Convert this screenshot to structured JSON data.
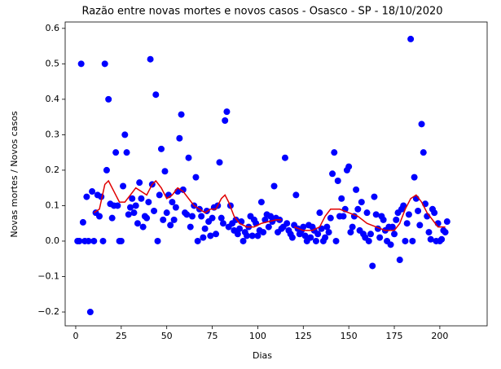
{
  "chart_data": {
    "type": "scatter",
    "title": "Razão entre novas mortes e novos casos - Osasco - SP - 18/10/2020",
    "x_label": "Dias",
    "y_label": "Novas mortes / Novos casos",
    "xlim": [
      -5.8,
      226
    ],
    "ylim": [
      -0.239,
      0.618
    ],
    "xticks": [
      0,
      25,
      50,
      75,
      100,
      125,
      150,
      175,
      200
    ],
    "yticks": [
      {
        "value": -0.2,
        "label": "−0.2"
      },
      {
        "value": -0.1,
        "label": "−0.1"
      },
      {
        "value": 0,
        "label": "0.0"
      },
      0.1,
      0.2,
      0.3,
      0.4,
      0.5,
      0.6
    ],
    "series": [
      {
        "kind": "points",
        "color": "#0000ff",
        "x": [
          1,
          2,
          3,
          4,
          5,
          6,
          7,
          8,
          9,
          10,
          11,
          12,
          13,
          14,
          15,
          16,
          17,
          18,
          19,
          20,
          21,
          22,
          23,
          24,
          25,
          26,
          27,
          28,
          29,
          30,
          31,
          32,
          33,
          34,
          35,
          36,
          37,
          38,
          39,
          40,
          41,
          42,
          43,
          44,
          45,
          46,
          47,
          48,
          49,
          50,
          51,
          52,
          53,
          54,
          55,
          56,
          57,
          58,
          59,
          60,
          61,
          62,
          63,
          64,
          65,
          66,
          67,
          68,
          69,
          70,
          71,
          72,
          73,
          74,
          75,
          76,
          77,
          78,
          79,
          80,
          81,
          82,
          83,
          84,
          85,
          86,
          87,
          88,
          89,
          90,
          91,
          92,
          93,
          94,
          95,
          96,
          97,
          98,
          99,
          100,
          101,
          102,
          103,
          104,
          105,
          106,
          107,
          108,
          109,
          110,
          111,
          112,
          113,
          114,
          115,
          116,
          117,
          118,
          119,
          120,
          121,
          122,
          123,
          124,
          125,
          126,
          127,
          128,
          129,
          130,
          131,
          132,
          133,
          134,
          135,
          136,
          137,
          138,
          139,
          140,
          141,
          142,
          143,
          144,
          145,
          146,
          147,
          148,
          149,
          150,
          151,
          152,
          153,
          154,
          155,
          156,
          157,
          158,
          159,
          160,
          161,
          162,
          163,
          164,
          165,
          166,
          167,
          168,
          169,
          170,
          171,
          172,
          173,
          174,
          175,
          176,
          177,
          178,
          179,
          180,
          181,
          182,
          183,
          184,
          185,
          186,
          187,
          188,
          189,
          190,
          191,
          192,
          193,
          194,
          195,
          196,
          197,
          198,
          199,
          200,
          201,
          202,
          203,
          204
        ],
        "values": [
          0,
          0,
          0.5,
          0.053,
          0,
          0.125,
          0,
          -0.2,
          0.14,
          0,
          0.08,
          0.13,
          0.07,
          0.125,
          0,
          0.5,
          0.2,
          0.4,
          0.105,
          0.065,
          0.1,
          0.25,
          0.1,
          0,
          0,
          0.155,
          0.3,
          0.25,
          0.075,
          0.095,
          0.12,
          0.08,
          0.1,
          0.05,
          0.165,
          0.12,
          0.04,
          0.07,
          0.065,
          0.11,
          0.513,
          0.16,
          0.085,
          0.413,
          0,
          0.13,
          0.26,
          0.06,
          0.197,
          0.08,
          0.13,
          0.045,
          0.11,
          0.06,
          0.095,
          0.14,
          0.29,
          0.357,
          0.145,
          0.08,
          0.075,
          0.235,
          0.04,
          0.07,
          0.1,
          0.18,
          0,
          0.09,
          0.07,
          0.01,
          0.035,
          0.085,
          0.055,
          0.015,
          0.065,
          0.095,
          0.02,
          0.1,
          0.222,
          0.065,
          0.05,
          0.34,
          0.365,
          0.04,
          0.1,
          0.05,
          0.03,
          0.06,
          0.02,
          0.035,
          0.055,
          0,
          0.025,
          0.015,
          0.04,
          0.07,
          0.015,
          0.06,
          0.05,
          0.015,
          0.03,
          0.11,
          0.025,
          0.06,
          0.075,
          0.04,
          0.07,
          0.055,
          0.155,
          0.065,
          0.025,
          0.06,
          0.035,
          0.04,
          0.235,
          0.05,
          0.03,
          0.02,
          0.01,
          0.045,
          0.13,
          0.035,
          0.02,
          0.03,
          0.04,
          0.015,
          0,
          0.045,
          0.01,
          0.04,
          0.03,
          0,
          0.02,
          0.08,
          0.035,
          0,
          0.01,
          0.04,
          0.025,
          0.065,
          0.19,
          0.25,
          0,
          0.17,
          0.07,
          0.12,
          0.07,
          0.09,
          0.2,
          0.21,
          0.025,
          0.04,
          0.07,
          0.145,
          0.09,
          0.03,
          0.11,
          0.02,
          0.01,
          0.08,
          0,
          0.02,
          -0.07,
          0.125,
          0.075,
          0.035,
          0.01,
          0.07,
          0.06,
          0.03,
          0,
          0.04,
          -0.01,
          0.04,
          0.02,
          0.06,
          0.08,
          -0.053,
          0.09,
          0.1,
          0,
          0.05,
          0.075,
          0.57,
          0,
          0.18,
          0.12,
          0.085,
          0.045,
          0.33,
          0.25,
          0.105,
          0.07,
          0.025,
          0.005,
          0.09,
          0.08,
          0,
          0.05,
          0,
          0.005,
          0.03,
          0.025,
          0.055
        ]
      },
      {
        "kind": "line",
        "color": "#e00000",
        "x": [
          10,
          13,
          16,
          18,
          21,
          24,
          27,
          30,
          33,
          36,
          39,
          42,
          44,
          47,
          50,
          53,
          56,
          59,
          62,
          65,
          68,
          71,
          74,
          77,
          80,
          82,
          84,
          87,
          90,
          94,
          98,
          102,
          106,
          110,
          113,
          116,
          120,
          125,
          130,
          134,
          137,
          140,
          145,
          150,
          155,
          160,
          165,
          170,
          175,
          178,
          181,
          184,
          187,
          190,
          193,
          196,
          199,
          203
        ],
        "values": [
          0.08,
          0.09,
          0.16,
          0.17,
          0.14,
          0.11,
          0.11,
          0.13,
          0.15,
          0.14,
          0.13,
          0.16,
          0.17,
          0.15,
          0.12,
          0.13,
          0.15,
          0.14,
          0.12,
          0.1,
          0.09,
          0.08,
          0.09,
          0.09,
          0.12,
          0.13,
          0.11,
          0.07,
          0.05,
          0.04,
          0.04,
          0.05,
          0.055,
          0.06,
          0.06,
          null,
          0.04,
          0.03,
          0.03,
          0.04,
          0.07,
          0.09,
          0.09,
          0.08,
          0.07,
          0.05,
          0.04,
          0.03,
          0.03,
          0.05,
          0.09,
          0.12,
          0.13,
          0.11,
          0.08,
          0.06,
          0.04,
          0.04
        ]
      }
    ]
  }
}
